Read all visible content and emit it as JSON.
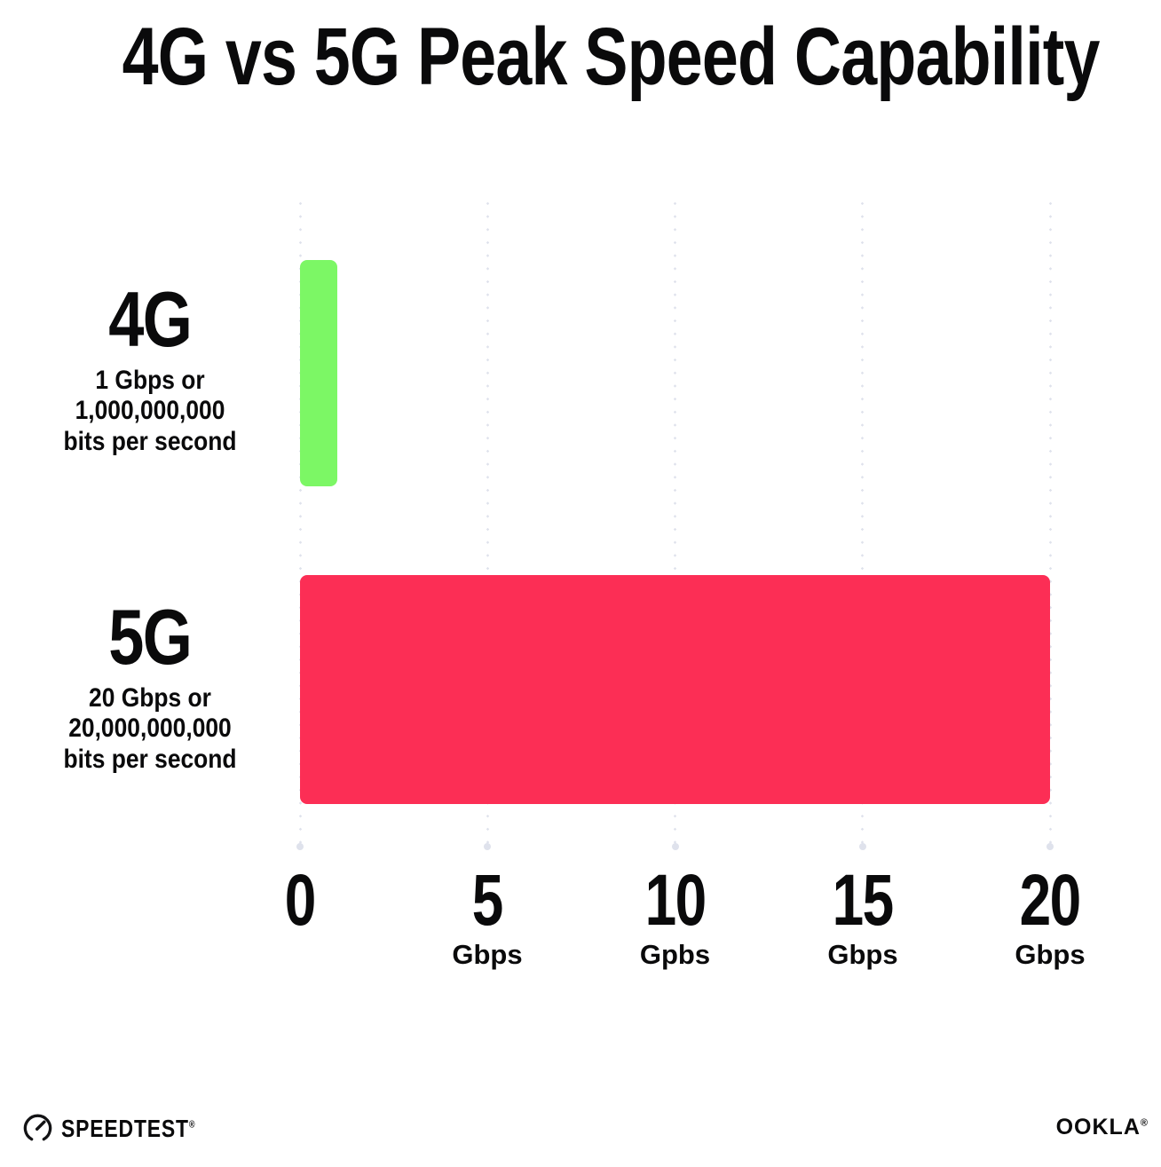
{
  "title": "4G vs 5G Peak Speed Capability",
  "chart_data": {
    "type": "bar",
    "orientation": "horizontal",
    "title": "4G vs 5G Peak Speed Capability",
    "categories": [
      "4G",
      "5G"
    ],
    "values": [
      1,
      20
    ],
    "value_unit": "Gbps",
    "xlim": [
      0,
      20
    ],
    "grid": "dotted vertical gridlines at 0, 5, 10, 15, 20",
    "legend": "none",
    "bars": [
      {
        "label": "4G",
        "sublabel_lines": [
          "1 Gbps or",
          "1,000,000,000",
          "bits per second"
        ],
        "value": 1,
        "color": "#7CF765"
      },
      {
        "label": "5G",
        "sublabel_lines": [
          "20 Gbps or",
          "20,000,000,000",
          "bits per second"
        ],
        "value": 20,
        "color": "#FC2E55"
      }
    ],
    "x_ticks": [
      {
        "value": "0",
        "unit": ""
      },
      {
        "value": "5",
        "unit": "Gbps"
      },
      {
        "value": "10",
        "unit": "Gpbs"
      },
      {
        "value": "15",
        "unit": "Gbps"
      },
      {
        "value": "20",
        "unit": "Gbps"
      }
    ]
  },
  "colors": {
    "bar_4g": "#7CF765",
    "bar_5g": "#FC2E55",
    "gridline": "#DFE2EC",
    "text": "#0A0A0B",
    "background": "#FFFFFF"
  },
  "footer": {
    "speedtest_label": "SPEEDTEST",
    "speedtest_trademark": "®",
    "ookla_label": "OOKLA",
    "ookla_trademark": "®"
  }
}
